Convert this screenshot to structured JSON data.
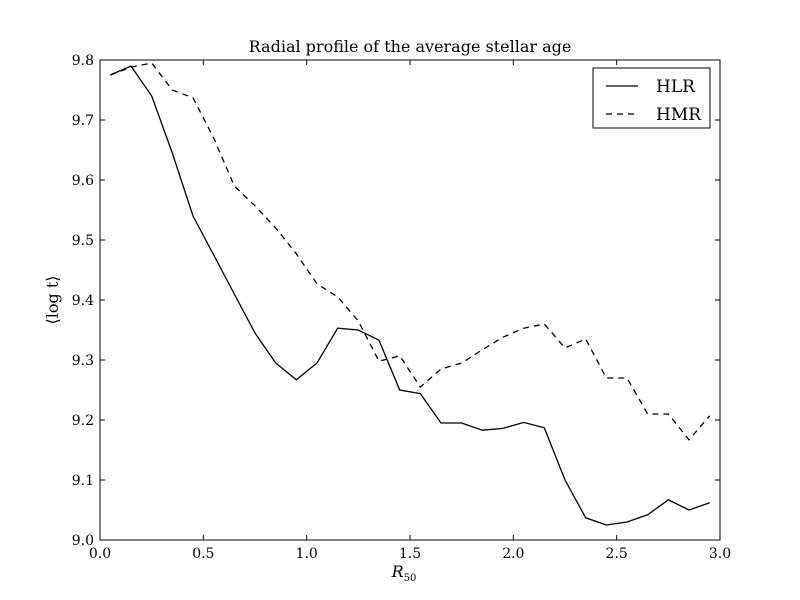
{
  "chart_data": {
    "type": "line",
    "title": "Radial profile of the average stellar age",
    "xlabel": "R",
    "xlabel_sub": "50",
    "ylabel": "⟨log t⟩",
    "xlim": [
      0.0,
      3.0
    ],
    "ylim": [
      9.0,
      9.8
    ],
    "xticks": [
      "0.0",
      "0.5",
      "1.0",
      "1.5",
      "2.0",
      "2.5",
      "3.0"
    ],
    "yticks": [
      "9.0",
      "9.1",
      "9.2",
      "9.3",
      "9.4",
      "9.5",
      "9.6",
      "9.7",
      "9.8"
    ],
    "grid": false,
    "legend_position": "top-right",
    "series": [
      {
        "name": "HLR",
        "style": "solid",
        "color": "#000000",
        "x": [
          0.05,
          0.15,
          0.25,
          0.35,
          0.45,
          0.55,
          0.65,
          0.75,
          0.85,
          0.95,
          1.05,
          1.15,
          1.25,
          1.35,
          1.45,
          1.55,
          1.65,
          1.75,
          1.85,
          1.95,
          2.05,
          2.15,
          2.25,
          2.35,
          2.45,
          2.55,
          2.65,
          2.75,
          2.85,
          2.95
        ],
        "y": [
          9.775,
          9.79,
          9.74,
          9.645,
          9.54,
          9.475,
          9.41,
          9.345,
          9.295,
          9.267,
          9.295,
          9.353,
          9.35,
          9.333,
          9.25,
          9.244,
          9.195,
          9.195,
          9.183,
          9.186,
          9.196,
          9.187,
          9.1,
          9.037,
          9.025,
          9.03,
          9.042,
          9.067,
          9.05,
          9.062
        ]
      },
      {
        "name": "HMR",
        "style": "dashed",
        "color": "#000000",
        "x": [
          0.05,
          0.15,
          0.25,
          0.35,
          0.45,
          0.55,
          0.65,
          0.75,
          0.85,
          0.95,
          1.05,
          1.15,
          1.25,
          1.35,
          1.45,
          1.55,
          1.65,
          1.75,
          1.85,
          1.95,
          2.05,
          2.15,
          2.25,
          2.35,
          2.45,
          2.55,
          2.65,
          2.75,
          2.85,
          2.95
        ],
        "y": [
          9.775,
          9.788,
          9.795,
          9.75,
          9.737,
          9.67,
          9.59,
          9.557,
          9.52,
          9.477,
          9.427,
          9.405,
          9.365,
          9.298,
          9.307,
          9.255,
          9.285,
          9.295,
          9.317,
          9.338,
          9.353,
          9.36,
          9.32,
          9.335,
          9.27,
          9.27,
          9.21,
          9.21,
          9.167,
          9.207
        ]
      }
    ]
  }
}
